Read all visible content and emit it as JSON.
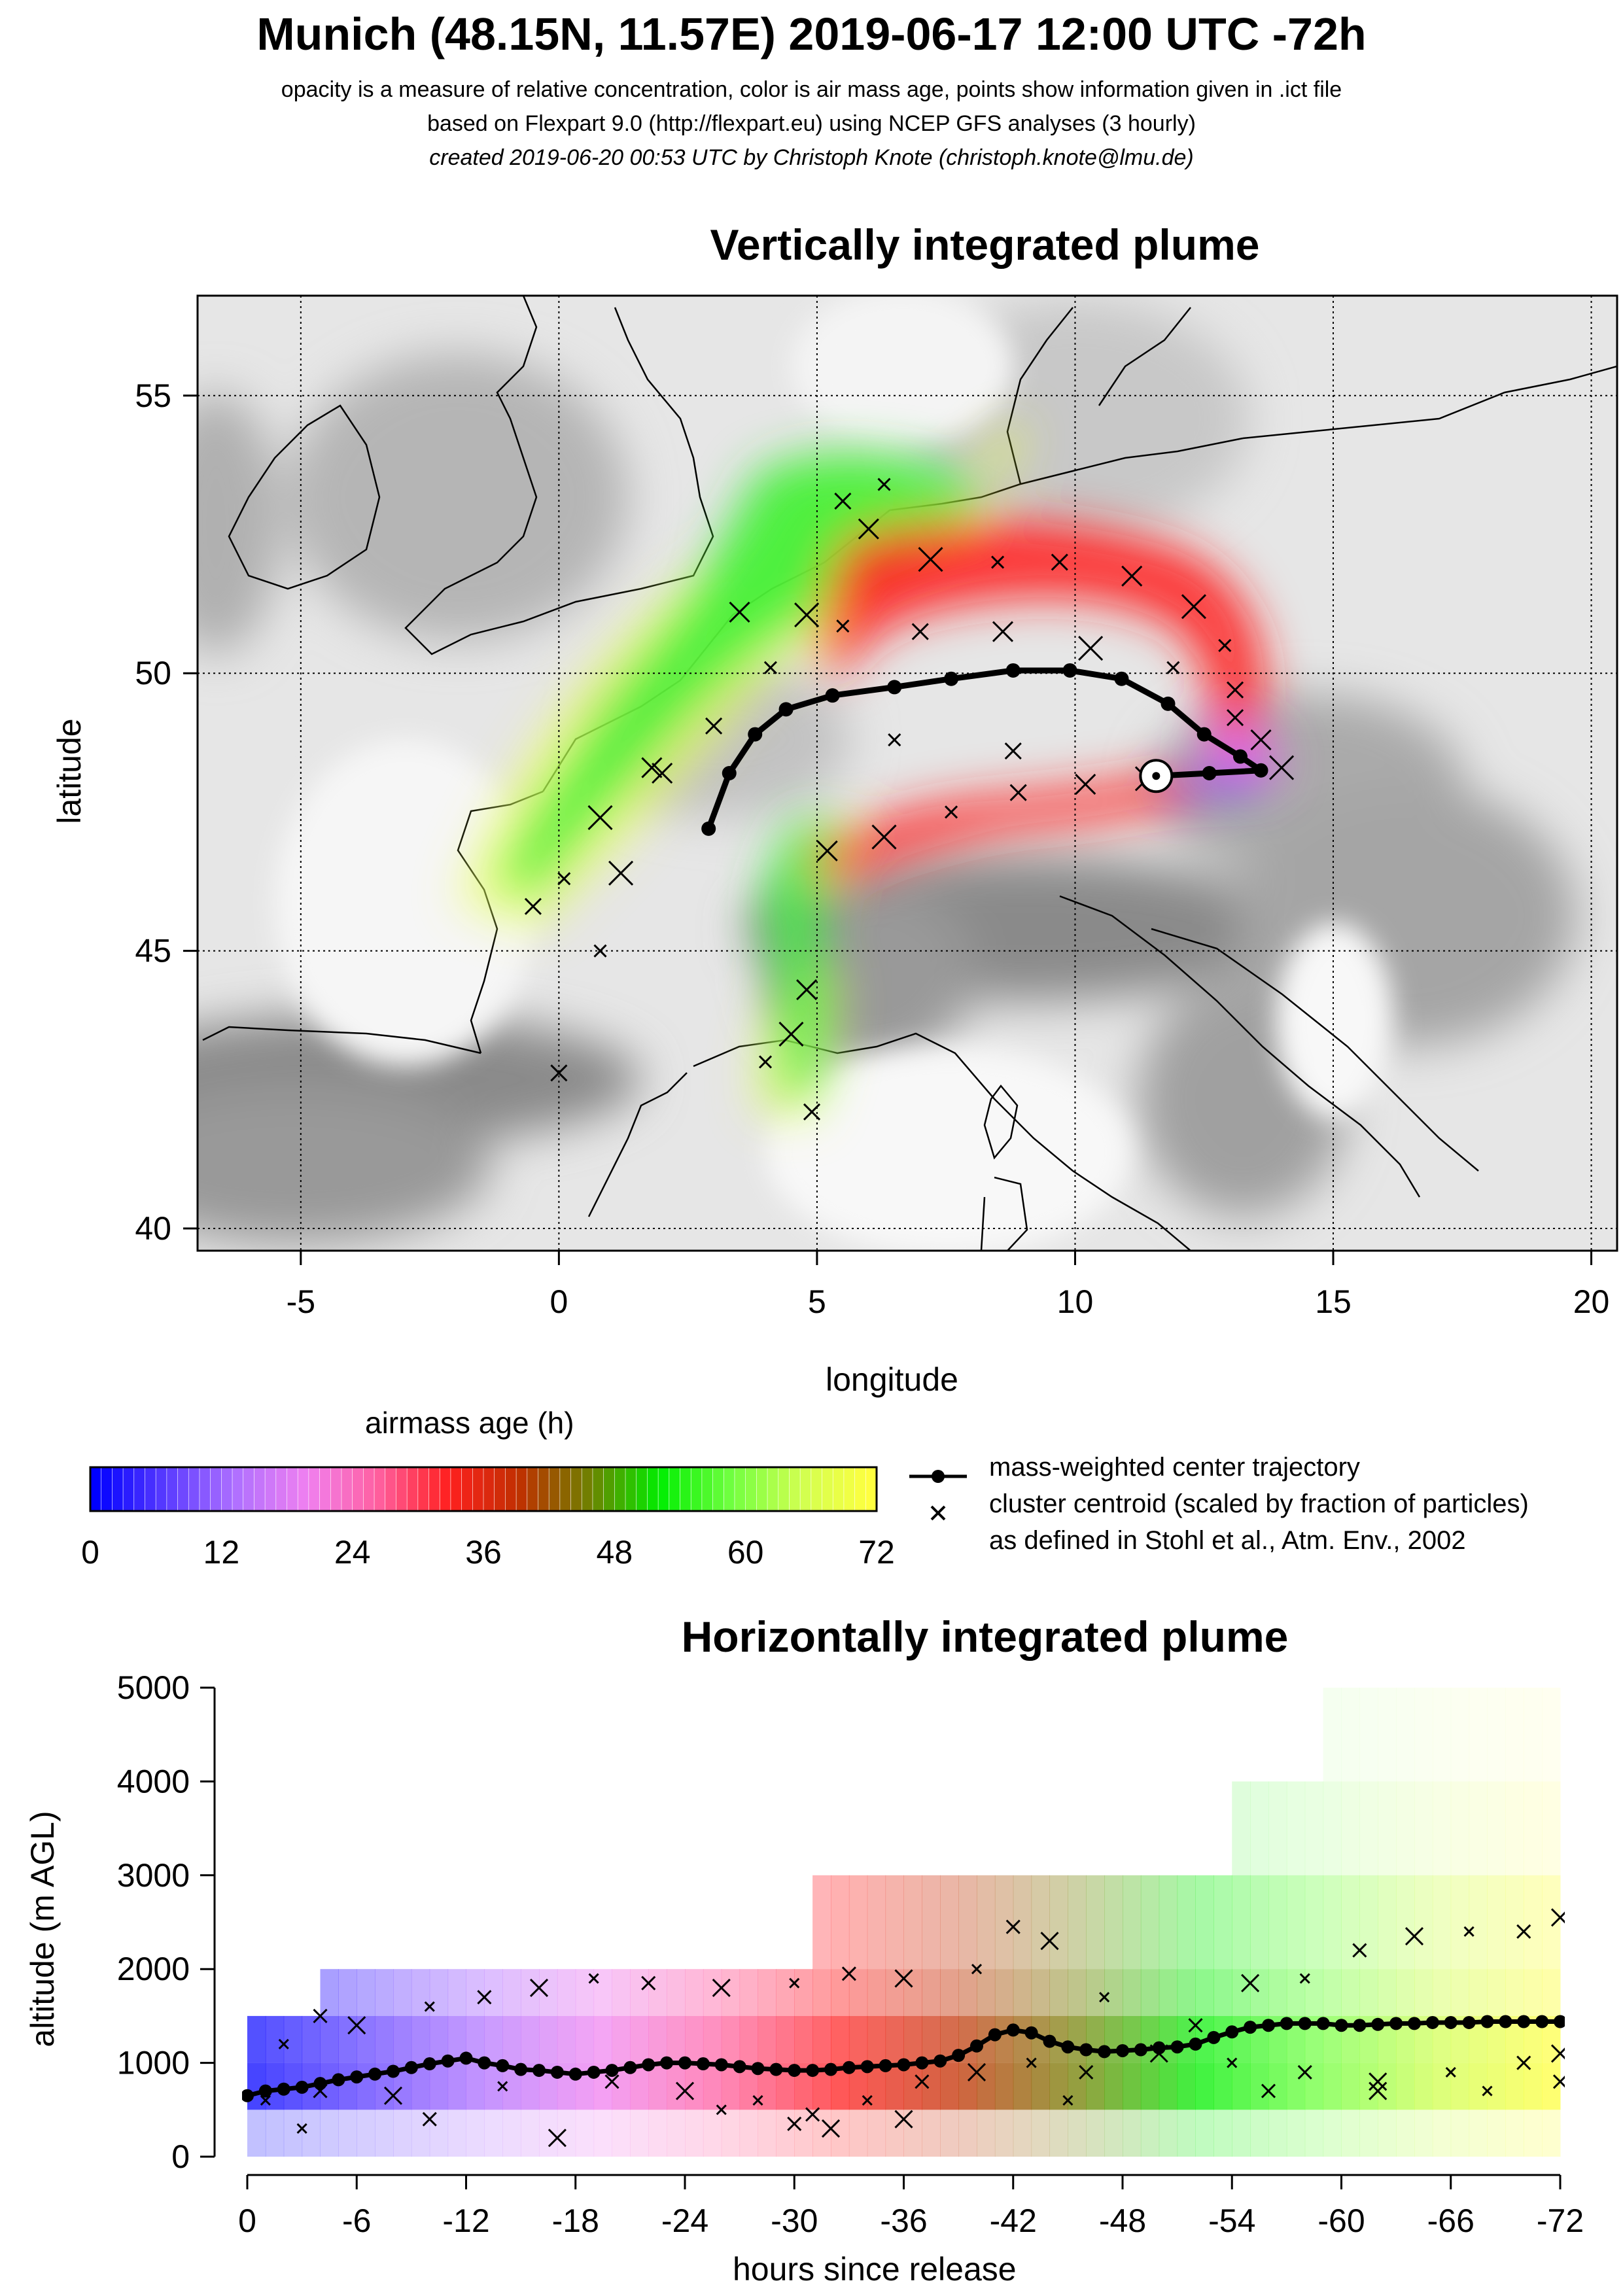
{
  "header": {
    "title": "Munich (48.15N, 11.57E) 2019-06-17 12:00 UTC -72h",
    "line1": "opacity is a measure of relative concentration, color is air mass age, points show information given in .ict file",
    "line2": "based on Flexpart 9.0 (http://flexpart.eu) using NCEP GFS analyses (3 hourly)",
    "line3": "created 2019-06-20 00:53 UTC by Christoph Knote (christoph.knote@lmu.de)"
  },
  "colors": {
    "plume_green": "#33ff33",
    "plume_red": "#ff2222",
    "plume_yellow": "#eeff55",
    "plume_magenta": "#ee66ee",
    "plume_blue": "#3333ff",
    "terrain_gray": "#9a9a9a"
  },
  "legend": {
    "colorbar_title": "airmass age (h)",
    "colorbar_ticks": [
      "0",
      "12",
      "24",
      "36",
      "48",
      "60",
      "72"
    ],
    "colorbar_colors": [
      "#0000ff",
      "#5a3cff",
      "#b070ff",
      "#f080f0",
      "#ff60a0",
      "#ff2020",
      "#c03000",
      "#708000",
      "#00ee00",
      "#70ff40",
      "#d0ff50",
      "#ffff40"
    ],
    "line_label": "mass-weighted center trajectory",
    "cross_label": "cluster centroid (scaled by fraction of particles)",
    "cross_note": "as defined in Stohl et al., Atm. Env., 2002"
  },
  "chart_data": [
    {
      "type": "scatter",
      "title": "Vertically integrated plume",
      "xlabel": "longitude",
      "ylabel": "latitude",
      "xlim": [
        -7,
        20.5
      ],
      "ylim": [
        39.6,
        56.8
      ],
      "xticks": [
        -5,
        0,
        5,
        10,
        15,
        20
      ],
      "yticks": [
        40,
        45,
        50,
        55
      ],
      "grid": true,
      "release_point": {
        "lon": 11.57,
        "lat": 48.15
      },
      "center_trajectory": [
        [
          11.57,
          48.15
        ],
        [
          12.6,
          48.2
        ],
        [
          13.6,
          48.25
        ],
        [
          13.2,
          48.5
        ],
        [
          12.5,
          48.9
        ],
        [
          11.8,
          49.45
        ],
        [
          10.9,
          49.9
        ],
        [
          9.9,
          50.05
        ],
        [
          8.8,
          50.05
        ],
        [
          7.6,
          49.9
        ],
        [
          6.5,
          49.75
        ],
        [
          5.3,
          49.6
        ],
        [
          4.4,
          49.35
        ],
        [
          3.8,
          48.9
        ],
        [
          3.3,
          48.2
        ],
        [
          2.9,
          47.2
        ]
      ],
      "cluster_centroids": [
        [
          6.3,
          53.4
        ],
        [
          5.5,
          53.1
        ],
        [
          6.0,
          52.6
        ],
        [
          7.2,
          52.05
        ],
        [
          8.5,
          52.0
        ],
        [
          9.7,
          52.0
        ],
        [
          11.1,
          51.75
        ],
        [
          12.3,
          51.2
        ],
        [
          12.9,
          50.5
        ],
        [
          13.1,
          49.7
        ],
        [
          13.6,
          48.8
        ],
        [
          14.0,
          48.3
        ],
        [
          5.5,
          50.85
        ],
        [
          7.0,
          50.75
        ],
        [
          8.6,
          50.75
        ],
        [
          10.3,
          50.45
        ],
        [
          11.9,
          50.1
        ],
        [
          13.1,
          49.2
        ],
        [
          3.5,
          51.1
        ],
        [
          4.8,
          51.05
        ],
        [
          4.1,
          50.1
        ],
        [
          3.0,
          49.05
        ],
        [
          1.8,
          48.3
        ],
        [
          0.8,
          47.4
        ],
        [
          0.1,
          46.3
        ],
        [
          -0.5,
          45.8
        ],
        [
          2.0,
          48.2
        ],
        [
          1.2,
          46.4
        ],
        [
          0.8,
          45.0
        ],
        [
          0.0,
          42.8
        ],
        [
          4.8,
          44.3
        ],
        [
          4.5,
          43.5
        ],
        [
          4.0,
          43.0
        ],
        [
          4.9,
          42.1
        ],
        [
          5.2,
          46.8
        ],
        [
          6.3,
          47.05
        ],
        [
          7.6,
          47.5
        ],
        [
          8.9,
          47.85
        ],
        [
          10.2,
          48.0
        ],
        [
          11.4,
          48.1
        ],
        [
          6.5,
          48.8
        ],
        [
          8.8,
          48.6
        ]
      ]
    },
    {
      "type": "scatter",
      "title": "Horizontally integrated plume",
      "xlabel": "hours since release",
      "ylabel": "altitude (m AGL)",
      "xlim": [
        0,
        -72
      ],
      "ylim": [
        0,
        5000
      ],
      "xticks": [
        "0",
        "-6",
        "-12",
        "-18",
        "-24",
        "-30",
        "-36",
        "-42",
        "-48",
        "-54",
        "-60",
        "-66",
        "-72"
      ],
      "yticks": [
        "0",
        "1000",
        "2000",
        "3000",
        "4000",
        "5000"
      ],
      "center_trajectory": [
        [
          0,
          650
        ],
        [
          -1,
          700
        ],
        [
          -2,
          720
        ],
        [
          -3,
          740
        ],
        [
          -4,
          780
        ],
        [
          -5,
          820
        ],
        [
          -6,
          850
        ],
        [
          -7,
          880
        ],
        [
          -8,
          910
        ],
        [
          -9,
          950
        ],
        [
          -10,
          990
        ],
        [
          -11,
          1020
        ],
        [
          -12,
          1050
        ],
        [
          -13,
          1000
        ],
        [
          -14,
          970
        ],
        [
          -15,
          930
        ],
        [
          -16,
          920
        ],
        [
          -17,
          900
        ],
        [
          -18,
          880
        ],
        [
          -19,
          900
        ],
        [
          -20,
          920
        ],
        [
          -21,
          950
        ],
        [
          -22,
          980
        ],
        [
          -23,
          1000
        ],
        [
          -24,
          1000
        ],
        [
          -25,
          990
        ],
        [
          -26,
          980
        ],
        [
          -27,
          960
        ],
        [
          -28,
          940
        ],
        [
          -29,
          930
        ],
        [
          -30,
          920
        ],
        [
          -31,
          920
        ],
        [
          -32,
          930
        ],
        [
          -33,
          950
        ],
        [
          -34,
          960
        ],
        [
          -35,
          970
        ],
        [
          -36,
          980
        ],
        [
          -37,
          1000
        ],
        [
          -38,
          1020
        ],
        [
          -39,
          1080
        ],
        [
          -40,
          1180
        ],
        [
          -41,
          1300
        ],
        [
          -42,
          1350
        ],
        [
          -43,
          1320
        ],
        [
          -44,
          1230
        ],
        [
          -45,
          1170
        ],
        [
          -46,
          1140
        ],
        [
          -47,
          1120
        ],
        [
          -48,
          1130
        ],
        [
          -49,
          1140
        ],
        [
          -50,
          1160
        ],
        [
          -51,
          1170
        ],
        [
          -52,
          1200
        ],
        [
          -53,
          1270
        ],
        [
          -54,
          1330
        ],
        [
          -55,
          1380
        ],
        [
          -56,
          1400
        ],
        [
          -57,
          1420
        ],
        [
          -58,
          1420
        ],
        [
          -59,
          1420
        ],
        [
          -60,
          1400
        ],
        [
          -61,
          1400
        ],
        [
          -62,
          1410
        ],
        [
          -63,
          1420
        ],
        [
          -64,
          1420
        ],
        [
          -65,
          1430
        ],
        [
          -66,
          1430
        ],
        [
          -67,
          1430
        ],
        [
          -68,
          1440
        ],
        [
          -69,
          1440
        ],
        [
          -70,
          1440
        ],
        [
          -71,
          1440
        ],
        [
          -72,
          1440
        ]
      ],
      "cluster_centroids": [
        [
          -2,
          1200
        ],
        [
          -4,
          1500
        ],
        [
          -6,
          1400
        ],
        [
          -10,
          1600
        ],
        [
          -13,
          1700
        ],
        [
          -16,
          1800
        ],
        [
          -19,
          1900
        ],
        [
          -22,
          1850
        ],
        [
          -26,
          1800
        ],
        [
          -30,
          1850
        ],
        [
          -33,
          1950
        ],
        [
          -36,
          1900
        ],
        [
          -40,
          2000
        ],
        [
          -42,
          2450
        ],
        [
          -44,
          2300
        ],
        [
          -47,
          1700
        ],
        [
          -52,
          1400
        ],
        [
          -55,
          1850
        ],
        [
          -58,
          1900
        ],
        [
          -61,
          2200
        ],
        [
          -64,
          2350
        ],
        [
          -67,
          2400
        ],
        [
          -70,
          2400
        ],
        [
          -72,
          2550
        ],
        [
          -1,
          600
        ],
        [
          -4,
          700
        ],
        [
          -8,
          650
        ],
        [
          -14,
          750
        ],
        [
          -20,
          800
        ],
        [
          -24,
          700
        ],
        [
          -28,
          600
        ],
        [
          -31,
          450
        ],
        [
          -32,
          300
        ],
        [
          -34,
          600
        ],
        [
          -37,
          800
        ],
        [
          -40,
          900
        ],
        [
          -43,
          1000
        ],
        [
          -46,
          900
        ],
        [
          -50,
          1100
        ],
        [
          -54,
          1000
        ],
        [
          -58,
          900
        ],
        [
          -62,
          800
        ],
        [
          -66,
          900
        ],
        [
          -70,
          1000
        ],
        [
          -72,
          1100
        ],
        [
          -3,
          300
        ],
        [
          -10,
          400
        ],
        [
          -17,
          200
        ],
        [
          -26,
          500
        ],
        [
          -30,
          350
        ],
        [
          -36,
          400
        ],
        [
          -45,
          600
        ],
        [
          -56,
          700
        ],
        [
          -62,
          700
        ],
        [
          -68,
          700
        ],
        [
          -72,
          800
        ]
      ]
    }
  ]
}
